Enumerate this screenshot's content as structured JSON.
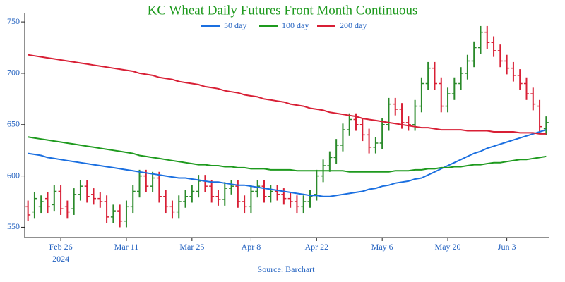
{
  "chart_data": {
    "type": "ohlc",
    "title": "KC Wheat Daily Futures Front Month Continuous",
    "source": "Source: Barchart",
    "categories": [
      null,
      null,
      null,
      null,
      null,
      "Feb 26",
      null,
      null,
      null,
      null,
      null,
      null,
      null,
      null,
      null,
      "Mar 11",
      null,
      null,
      null,
      null,
      null,
      null,
      null,
      null,
      null,
      "Mar 25",
      null,
      null,
      null,
      null,
      null,
      null,
      null,
      null,
      "Apr 8",
      null,
      null,
      null,
      null,
      null,
      null,
      null,
      null,
      null,
      "Apr 22",
      null,
      null,
      null,
      null,
      null,
      null,
      null,
      null,
      null,
      "May 6",
      null,
      null,
      null,
      null,
      null,
      null,
      null,
      null,
      null,
      "May 20",
      null,
      null,
      null,
      null,
      null,
      null,
      null,
      null,
      "Jun 3",
      null,
      null,
      null,
      null,
      null,
      null
    ],
    "x_sublabel": "2024",
    "ylim": [
      540,
      759
    ],
    "yticks": [
      550,
      600,
      650,
      700,
      750
    ],
    "legend": "top-center",
    "up_color": "#2a8a2a",
    "down_color": "#d81f35",
    "ohlc": {
      "open": [
        570,
        565,
        570,
        578,
        572,
        585,
        570,
        568,
        582,
        590,
        582,
        578,
        575,
        560,
        566,
        556,
        570,
        585,
        600,
        590,
        598,
        580,
        570,
        565,
        575,
        580,
        585,
        595,
        590,
        580,
        577,
        588,
        590,
        575,
        570,
        585,
        590,
        580,
        585,
        582,
        578,
        575,
        570,
        575,
        582,
        600,
        610,
        618,
        630,
        645,
        655,
        650,
        640,
        628,
        632,
        650,
        670,
        665,
        652,
        650,
        668,
        690,
        705,
        690,
        668,
        680,
        690,
        700,
        712,
        725,
        740,
        730,
        722,
        712,
        705,
        698,
        690,
        680,
        668,
        646
      ],
      "high": [
        576,
        584,
        581,
        584,
        591,
        591,
        576,
        588,
        596,
        596,
        588,
        584,
        581,
        572,
        572,
        576,
        591,
        606,
        606,
        604,
        604,
        586,
        576,
        581,
        586,
        591,
        601,
        601,
        596,
        586,
        594,
        596,
        596,
        581,
        591,
        596,
        596,
        591,
        591,
        588,
        584,
        581,
        581,
        586,
        606,
        616,
        624,
        636,
        651,
        661,
        661,
        656,
        646,
        638,
        656,
        676,
        676,
        671,
        658,
        674,
        696,
        711,
        711,
        696,
        686,
        696,
        706,
        718,
        731,
        746,
        746,
        736,
        728,
        718,
        711,
        704,
        696,
        686,
        674,
        658
      ],
      "low": [
        556,
        559,
        564,
        564,
        566,
        562,
        559,
        562,
        576,
        574,
        572,
        569,
        554,
        554,
        550,
        550,
        564,
        579,
        584,
        584,
        574,
        564,
        559,
        559,
        569,
        574,
        579,
        584,
        574,
        571,
        571,
        582,
        569,
        564,
        564,
        579,
        574,
        574,
        576,
        572,
        569,
        564,
        564,
        569,
        576,
        594,
        604,
        612,
        624,
        639,
        644,
        634,
        622,
        622,
        626,
        644,
        659,
        646,
        644,
        644,
        662,
        684,
        684,
        662,
        662,
        674,
        684,
        694,
        706,
        719,
        724,
        716,
        706,
        699,
        692,
        684,
        674,
        664,
        642,
        640
      ],
      "close": [
        562,
        578,
        575,
        570,
        585,
        568,
        565,
        582,
        590,
        580,
        578,
        575,
        560,
        566,
        556,
        570,
        585,
        600,
        590,
        598,
        580,
        570,
        565,
        575,
        580,
        585,
        595,
        590,
        580,
        577,
        588,
        590,
        575,
        570,
        585,
        590,
        580,
        585,
        582,
        578,
        575,
        570,
        575,
        580,
        600,
        610,
        618,
        630,
        645,
        655,
        650,
        640,
        628,
        632,
        650,
        670,
        665,
        652,
        650,
        668,
        690,
        705,
        690,
        668,
        680,
        690,
        700,
        712,
        725,
        740,
        730,
        722,
        712,
        705,
        698,
        690,
        680,
        670,
        648,
        652
      ]
    },
    "series": [
      {
        "name": "50 day",
        "color": "#1a6fe0",
        "values": [
          622,
          621,
          620,
          618,
          617,
          616,
          615,
          614,
          613,
          612,
          611,
          610,
          609,
          608,
          607,
          606,
          605,
          604,
          603,
          602,
          601,
          600,
          599,
          598,
          598,
          597,
          596,
          595,
          594,
          594,
          593,
          592,
          591,
          591,
          590,
          589,
          588,
          587,
          586,
          585,
          584,
          583,
          582,
          581,
          581,
          580,
          580,
          581,
          582,
          583,
          584,
          585,
          587,
          588,
          590,
          591,
          593,
          594,
          595,
          597,
          598,
          601,
          604,
          607,
          610,
          613,
          616,
          619,
          622,
          624,
          627,
          629,
          631,
          633,
          635,
          637,
          639,
          641,
          643,
          645
        ]
      },
      {
        "name": "100 day",
        "color": "#1e9a1e",
        "values": [
          638,
          637,
          636,
          635,
          634,
          633,
          632,
          631,
          630,
          629,
          628,
          627,
          626,
          625,
          624,
          623,
          622,
          620,
          619,
          618,
          617,
          616,
          615,
          614,
          613,
          612,
          611,
          611,
          610,
          610,
          609,
          609,
          608,
          608,
          607,
          607,
          607,
          606,
          606,
          606,
          606,
          605,
          605,
          605,
          605,
          605,
          605,
          605,
          605,
          604,
          604,
          604,
          604,
          604,
          604,
          604,
          605,
          605,
          605,
          606,
          606,
          607,
          607,
          608,
          608,
          609,
          609,
          610,
          611,
          611,
          612,
          613,
          613,
          614,
          615,
          616,
          616,
          617,
          618,
          619
        ]
      },
      {
        "name": "200 day",
        "color": "#d81f35",
        "values": [
          718,
          717,
          716,
          715,
          714,
          713,
          712,
          711,
          710,
          709,
          708,
          707,
          706,
          705,
          704,
          703,
          702,
          700,
          699,
          698,
          696,
          695,
          694,
          692,
          691,
          690,
          689,
          687,
          686,
          685,
          683,
          682,
          681,
          679,
          678,
          677,
          675,
          674,
          673,
          672,
          670,
          669,
          668,
          666,
          665,
          664,
          662,
          661,
          660,
          659,
          658,
          656,
          655,
          654,
          653,
          652,
          651,
          650,
          649,
          648,
          647,
          647,
          646,
          645,
          645,
          645,
          645,
          644,
          644,
          644,
          644,
          643,
          643,
          643,
          643,
          642,
          642,
          642,
          641,
          641
        ]
      }
    ]
  }
}
